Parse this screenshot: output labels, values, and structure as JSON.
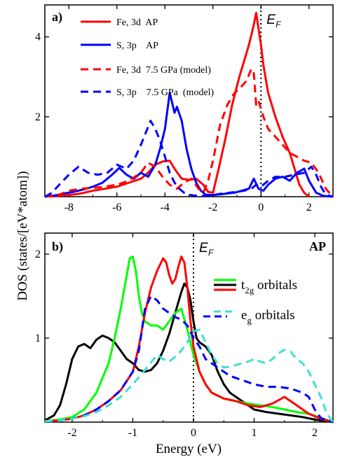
{
  "chart_data": [
    {
      "type": "line",
      "panel_label": "a)",
      "xlim": [
        -9,
        3
      ],
      "ylim": [
        0,
        4.8
      ],
      "xticks": [
        -8,
        -6,
        -4,
        -2,
        0,
        2
      ],
      "yticks": [
        0,
        2,
        4
      ],
      "ytick_labels": [
        "",
        "2",
        "4"
      ],
      "fermi_label": "E",
      "fermi_sub": "F",
      "fermi_x": 0,
      "series": [
        {
          "name": "Fe, 3d  AP",
          "color": "#ff0000",
          "dashed": false,
          "x": [
            -9,
            -8,
            -7.5,
            -7,
            -6.5,
            -6,
            -5.5,
            -5,
            -4.7,
            -4.4,
            -4.1,
            -3.8,
            -3.6,
            -3.3,
            -3.0,
            -2.7,
            -2.4,
            -2.2,
            -2.0,
            -1.8,
            -1.5,
            -1.2,
            -0.9,
            -0.7,
            -0.5,
            -0.3,
            -0.2,
            -0.1,
            0,
            0.1,
            0.3,
            0.6,
            0.9,
            1.2,
            1.4,
            1.6,
            1.8,
            2.0
          ],
          "y": [
            0,
            0.04,
            0.08,
            0.15,
            0.2,
            0.25,
            0.35,
            0.45,
            0.6,
            0.8,
            0.88,
            0.9,
            0.7,
            0.45,
            0.42,
            0.45,
            0.3,
            0.12,
            0.1,
            0.6,
            1.4,
            2.3,
            3.0,
            3.4,
            3.8,
            4.3,
            4.6,
            4.2,
            3.8,
            3.3,
            2.6,
            2.0,
            1.5,
            1.1,
            0.7,
            0.3,
            0.1,
            0
          ]
        },
        {
          "name": "S, 3p    AP",
          "color": "#0000ff",
          "dashed": false,
          "x": [
            -9,
            -8.6,
            -8.2,
            -7.8,
            -7.4,
            -7.0,
            -6.6,
            -6.2,
            -5.9,
            -5.6,
            -5.3,
            -5.0,
            -4.7,
            -4.4,
            -4.2,
            -4.0,
            -3.8,
            -3.6,
            -3.5,
            -3.3,
            -3.1,
            -2.9,
            -2.7,
            -2.5,
            -2.3,
            -2.0,
            -1.7,
            -1.4,
            -1.1,
            -0.8,
            -0.5,
            -0.3,
            -0.1,
            0.1,
            0.3,
            0.6,
            0.9,
            1.2,
            1.5,
            1.8,
            2.0,
            2.3,
            2.6,
            3
          ],
          "y": [
            0,
            0.03,
            0.08,
            0.12,
            0.18,
            0.25,
            0.35,
            0.55,
            0.72,
            0.55,
            0.45,
            0.6,
            0.5,
            0.8,
            1.2,
            1.7,
            2.6,
            2.1,
            2.25,
            1.9,
            1.2,
            0.7,
            0.35,
            0.15,
            0.05,
            0.04,
            0.06,
            0.08,
            0.1,
            0.15,
            0.2,
            0.45,
            0.2,
            0.15,
            0.3,
            0.45,
            0.5,
            0.4,
            0.6,
            0.7,
            0.4,
            0.1,
            0.02,
            0
          ]
        },
        {
          "name": "Fe, 3d  7.5 GPa (model)",
          "color": "#ff0000",
          "dashed": true,
          "x": [
            -9,
            -8.4,
            -8.0,
            -7.5,
            -7.0,
            -6.5,
            -6.0,
            -5.5,
            -5.0,
            -4.7,
            -4.4,
            -4.1,
            -3.8,
            -3.5,
            -3.2,
            -2.9,
            -2.6,
            -2.4,
            -2.2,
            -2.0,
            -1.7,
            -1.4,
            -1.1,
            -0.9,
            -0.6,
            -0.4,
            -0.3,
            -0.2,
            -0.1,
            0.1,
            0.3,
            0.6,
            0.9,
            1.2,
            1.5,
            1.8,
            2.1,
            2.4,
            2.7,
            3
          ],
          "y": [
            0,
            0.05,
            0.15,
            0.2,
            0.22,
            0.25,
            0.3,
            0.4,
            0.6,
            0.85,
            0.75,
            0.5,
            0.3,
            0.2,
            0.35,
            0.45,
            0.2,
            0.1,
            0.4,
            0.9,
            1.8,
            2.3,
            2.6,
            2.7,
            2.9,
            3.2,
            3.1,
            2.3,
            2.4,
            2.0,
            1.7,
            1.5,
            1.3,
            1.1,
            1.0,
            0.9,
            0.85,
            0.6,
            0.2,
            0
          ]
        },
        {
          "name": "S, 3p    7.5 GPa  (model)",
          "color": "#0000ff",
          "dashed": true,
          "x": [
            -9,
            -8.7,
            -8.4,
            -8.0,
            -7.6,
            -7.2,
            -6.8,
            -6.4,
            -6.0,
            -5.6,
            -5.3,
            -5.0,
            -4.8,
            -4.6,
            -4.4,
            -4.2,
            -4.0,
            -3.8,
            -3.6,
            -3.4,
            -3.2,
            -3.0,
            -2.8,
            -2.5,
            -2.2,
            -1.9,
            -1.6,
            -1.3,
            -1.0,
            -0.7,
            -0.4,
            -0.2,
            0,
            0.3,
            0.6,
            1.0,
            1.4,
            1.8,
            2.1,
            2.3,
            2.5,
            2.7,
            3
          ],
          "y": [
            0,
            0.1,
            0.3,
            0.55,
            0.75,
            0.6,
            0.55,
            0.6,
            0.8,
            0.7,
            0.9,
            1.3,
            1.6,
            1.9,
            1.7,
            1.4,
            1.0,
            0.6,
            0.35,
            0.2,
            0.1,
            0.05,
            0.03,
            0.02,
            0.03,
            0.05,
            0.08,
            0.1,
            0.12,
            0.15,
            0.2,
            0.3,
            0.25,
            0.4,
            0.5,
            0.5,
            0.55,
            0.6,
            0.75,
            0.55,
            0.25,
            0.05,
            0
          ]
        }
      ]
    },
    {
      "type": "line",
      "panel_label": "b)",
      "corner_label": "AP",
      "xlabel": "Energy (eV)",
      "xlim": [
        -2.45,
        2.3
      ],
      "ylim": [
        0,
        2.25
      ],
      "xticks": [
        -2,
        -1,
        0,
        1,
        2
      ],
      "yticks": [
        1,
        2
      ],
      "fermi_label": "E",
      "fermi_sub": "F",
      "fermi_x": 0,
      "legend": [
        {
          "label": "t",
          "sub": "2g",
          "suffix": " orbitals",
          "colors": [
            "#00ff00",
            "#000000",
            "#ff0000"
          ],
          "dashed": false
        },
        {
          "label": "e",
          "sub": "g",
          "suffix": " orbitals",
          "colors": [
            "#40e0d0",
            "#0000ff"
          ],
          "dashed": true
        }
      ],
      "series": [
        {
          "name": "t2g (black)",
          "color": "#000000",
          "dashed": false,
          "x": [
            -2.45,
            -2.3,
            -2.2,
            -2.1,
            -2.0,
            -1.9,
            -1.8,
            -1.7,
            -1.6,
            -1.5,
            -1.4,
            -1.3,
            -1.2,
            -1.1,
            -1.0,
            -0.9,
            -0.8,
            -0.7,
            -0.6,
            -0.5,
            -0.4,
            -0.3,
            -0.2,
            -0.15,
            -0.1,
            -0.05,
            0,
            0.05,
            0.1,
            0.2,
            0.3,
            0.4,
            0.5,
            0.6,
            0.7,
            0.8,
            0.9,
            1.0,
            1.2,
            1.4,
            1.6,
            1.8,
            2.0,
            2.2,
            2.3
          ],
          "y": [
            0.02,
            0.08,
            0.2,
            0.45,
            0.75,
            0.9,
            0.93,
            0.88,
            0.98,
            1.03,
            1.0,
            0.95,
            0.85,
            0.75,
            0.7,
            0.62,
            0.6,
            0.62,
            0.7,
            0.85,
            1.05,
            1.3,
            1.55,
            1.65,
            1.6,
            1.45,
            1.2,
            1.0,
            0.95,
            0.9,
            0.8,
            0.6,
            0.45,
            0.35,
            0.3,
            0.25,
            0.2,
            0.15,
            0.12,
            0.1,
            0.08,
            0.06,
            0.03,
            0.01,
            0
          ]
        },
        {
          "name": "t2g (green)",
          "color": "#00ff00",
          "dashed": false,
          "x": [
            -2.45,
            -2.2,
            -2.0,
            -1.8,
            -1.6,
            -1.4,
            -1.3,
            -1.2,
            -1.1,
            -1.05,
            -1.0,
            -0.95,
            -0.9,
            -0.85,
            -0.8,
            -0.7,
            -0.6,
            -0.5,
            -0.4,
            -0.3,
            -0.2,
            -0.1,
            0,
            0.1,
            0.2,
            0.3,
            0.5,
            0.7,
            0.9,
            1.1,
            1.3,
            1.5,
            1.7,
            1.9,
            2.1,
            2.3
          ],
          "y": [
            0.01,
            0.03,
            0.06,
            0.15,
            0.35,
            0.7,
            1.0,
            1.35,
            1.75,
            1.95,
            1.97,
            1.8,
            1.5,
            1.3,
            1.2,
            1.15,
            1.15,
            1.1,
            1.2,
            1.3,
            1.35,
            1.1,
            0.8,
            0.6,
            0.45,
            0.35,
            0.28,
            0.25,
            0.22,
            0.2,
            0.18,
            0.15,
            0.12,
            0.1,
            0.05,
            0
          ]
        },
        {
          "name": "t2g (red)",
          "color": "#ff0000",
          "dashed": false,
          "x": [
            -2.45,
            -2.2,
            -2.0,
            -1.8,
            -1.6,
            -1.4,
            -1.2,
            -1.0,
            -0.9,
            -0.8,
            -0.7,
            -0.6,
            -0.5,
            -0.45,
            -0.4,
            -0.35,
            -0.3,
            -0.25,
            -0.2,
            -0.15,
            -0.1,
            -0.05,
            0,
            0.1,
            0.2,
            0.3,
            0.5,
            0.7,
            0.9,
            1.1,
            1.3,
            1.5,
            1.7,
            1.9,
            2.1,
            2.3
          ],
          "y": [
            0.01,
            0.02,
            0.04,
            0.08,
            0.15,
            0.25,
            0.38,
            0.6,
            0.9,
            1.3,
            1.6,
            1.8,
            1.95,
            1.9,
            1.75,
            1.65,
            1.7,
            1.85,
            1.97,
            1.9,
            1.6,
            1.2,
            0.9,
            0.6,
            0.45,
            0.35,
            0.28,
            0.25,
            0.2,
            0.18,
            0.22,
            0.3,
            0.2,
            0.1,
            0.04,
            0
          ]
        },
        {
          "name": "eg (blue)",
          "color": "#0000ff",
          "dashed": true,
          "x": [
            -2.45,
            -2.2,
            -2.0,
            -1.8,
            -1.6,
            -1.4,
            -1.2,
            -1.0,
            -0.9,
            -0.8,
            -0.7,
            -0.6,
            -0.5,
            -0.4,
            -0.3,
            -0.2,
            -0.1,
            0,
            0.1,
            0.2,
            0.4,
            0.6,
            0.8,
            1.0,
            1.2,
            1.4,
            1.6,
            1.8,
            1.9,
            2.0,
            2.1,
            2.2,
            2.3
          ],
          "y": [
            0.01,
            0.02,
            0.04,
            0.08,
            0.15,
            0.25,
            0.38,
            0.6,
            0.85,
            1.35,
            1.5,
            1.45,
            1.35,
            1.3,
            1.25,
            1.22,
            1.15,
            1.0,
            0.9,
            0.75,
            0.65,
            0.55,
            0.5,
            0.45,
            0.42,
            0.42,
            0.4,
            0.35,
            0.3,
            0.15,
            0.05,
            0.02,
            0
          ]
        },
        {
          "name": "eg (cyan)",
          "color": "#40e0d0",
          "dashed": true,
          "x": [
            -2.45,
            -2.2,
            -2.0,
            -1.8,
            -1.6,
            -1.4,
            -1.2,
            -1.0,
            -0.8,
            -0.6,
            -0.5,
            -0.4,
            -0.3,
            -0.2,
            -0.1,
            0,
            0.1,
            0.2,
            0.3,
            0.4,
            0.5,
            0.6,
            0.7,
            0.8,
            0.9,
            1.0,
            1.1,
            1.2,
            1.3,
            1.4,
            1.5,
            1.6,
            1.7,
            1.8,
            1.9,
            2.0,
            2.1,
            2.2,
            2.3
          ],
          "y": [
            0.01,
            0.02,
            0.04,
            0.07,
            0.12,
            0.2,
            0.3,
            0.45,
            0.62,
            0.8,
            0.75,
            0.72,
            0.78,
            0.85,
            0.95,
            1.08,
            1.1,
            0.95,
            0.8,
            0.7,
            0.65,
            0.66,
            0.68,
            0.7,
            0.72,
            0.75,
            0.72,
            0.7,
            0.75,
            0.82,
            0.86,
            0.84,
            0.75,
            0.7,
            0.6,
            0.45,
            0.3,
            0.1,
            0
          ]
        }
      ]
    }
  ],
  "shared_ylabel": "DOS (states/[eV*atom])"
}
